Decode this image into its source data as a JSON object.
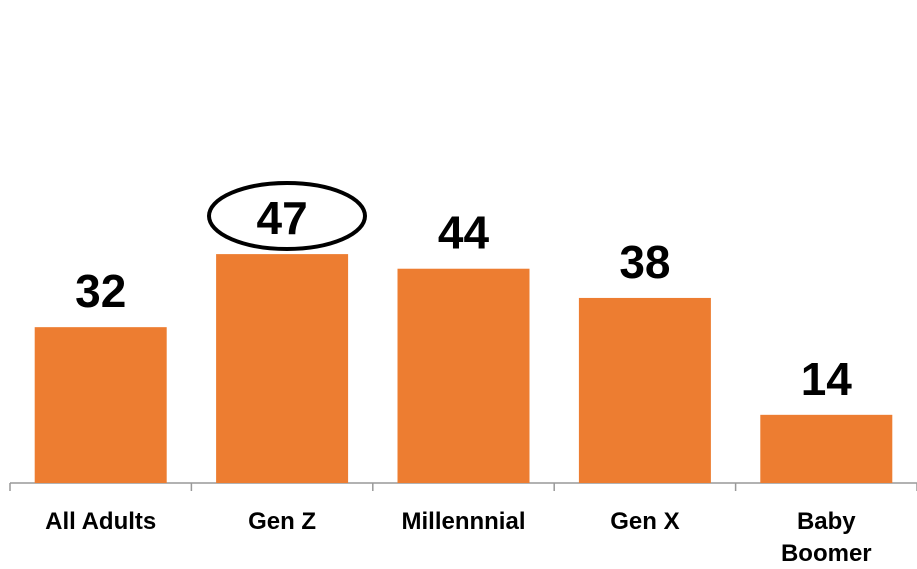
{
  "chart_data": {
    "type": "bar",
    "categories": [
      "All Adults",
      "Gen Z",
      "Millennnial",
      "Gen X",
      "Baby Boomer"
    ],
    "values": [
      32,
      47,
      44,
      38,
      14
    ],
    "color": "#ed7d31"
  }
}
